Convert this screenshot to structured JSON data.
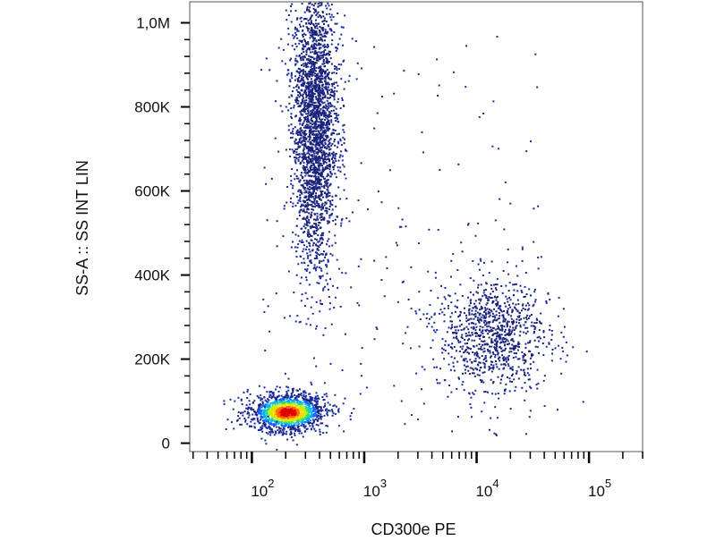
{
  "chart_data": {
    "type": "scatter",
    "plot_style": "flow cytometry density dot plot",
    "title": "",
    "xlabel": "CD300e PE",
    "ylabel": "SS-A :: SS INT LIN",
    "x_scale": "log",
    "y_scale": "linear",
    "xlim": [
      28,
      300000
    ],
    "ylim": [
      -20000,
      1050000
    ],
    "grid": false,
    "legend": "none",
    "x_ticks": [
      {
        "value": 100,
        "base": "10",
        "exp": "2"
      },
      {
        "value": 1000,
        "base": "10",
        "exp": "3"
      },
      {
        "value": 10000,
        "base": "10",
        "exp": "4"
      },
      {
        "value": 100000,
        "base": "10",
        "exp": "5"
      }
    ],
    "y_ticks": [
      {
        "value": 0,
        "label": "0"
      },
      {
        "value": 200000,
        "label": "200K"
      },
      {
        "value": 400000,
        "label": "400K"
      },
      {
        "value": 600000,
        "label": "600K"
      },
      {
        "value": 800000,
        "label": "800K"
      },
      {
        "value": 1000000,
        "label": "1,0M"
      }
    ],
    "density_colormap": [
      "#1a237e",
      "#1565ff",
      "#00b4ff",
      "#22dd88",
      "#c8f000",
      "#ffd400",
      "#ff6a00",
      "#e00000"
    ],
    "point_color": "#1a2a9a",
    "populations": [
      {
        "x_center": 205,
        "x_spread_decades": 0.17,
        "y_center": 75000,
        "y_spread": 22000,
        "count": 1500,
        "peak_density_color": "#e00000"
      },
      {
        "x_center": 360,
        "x_spread_decades": 0.1,
        "y_center": 760000,
        "y_spread": 170000,
        "count": 2600,
        "peak_density_color": "#e8d800"
      },
      {
        "x_center": 14000,
        "x_spread_decades": 0.25,
        "y_center": 260000,
        "y_spread": 70000,
        "count": 950,
        "peak_density_color": "#22aaff"
      }
    ]
  }
}
